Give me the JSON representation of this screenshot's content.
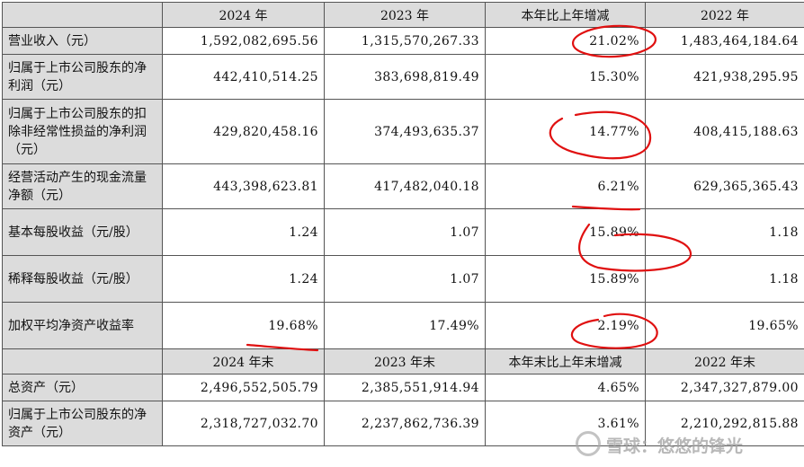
{
  "header": [
    "2024 年",
    "2023 年",
    "本年比上年增减",
    "2022 年"
  ],
  "rows": [
    {
      "label": "营业收入（元）",
      "v2024": "1,592,082,695.56",
      "v2023": "1,315,570,267.33",
      "change": "21.02%",
      "v2022": "1,483,464,184.64"
    },
    {
      "label": "归属于上市公司股东的净利润（元）",
      "v2024": "442,410,514.25",
      "v2023": "383,698,819.49",
      "change": "15.30%",
      "v2022": "421,938,295.95"
    },
    {
      "label": "归属于上市公司股东的扣除非经常性损益的净利润（元）",
      "v2024": "429,820,458.16",
      "v2023": "374,493,635.37",
      "change": "14.77%",
      "v2022": "408,415,188.63"
    },
    {
      "label": "经营活动产生的现金流量净额（元）",
      "v2024": "443,398,623.81",
      "v2023": "417,482,040.18",
      "change": "6.21%",
      "v2022": "629,365,365.43"
    },
    {
      "label": "基本每股收益（元/股）",
      "v2024": "1.24",
      "v2023": "1.07",
      "change": "15.89%",
      "v2022": "1.18"
    },
    {
      "label": "稀释每股收益（元/股）",
      "v2024": "1.24",
      "v2023": "1.07",
      "change": "15.89%",
      "v2022": "1.18"
    },
    {
      "label": "加权平均净资产收益率",
      "v2024": "19.68%",
      "v2023": "17.49%",
      "change": "2.19%",
      "v2022": "19.65%"
    }
  ],
  "header2": [
    "2024 年末",
    "2023 年末",
    "本年末比上年末增减",
    "2022 年末"
  ],
  "rows2": [
    {
      "label": "总资产（元）",
      "v2024": "2,496,552,505.79",
      "v2023": "2,385,551,914.94",
      "change": "4.65%",
      "v2022": "2,347,327,879.00"
    },
    {
      "label": "归属于上市公司股东的净资产（元）",
      "v2024": "2,318,727,032.70",
      "v2023": "2,237,862,736.39",
      "change": "3.61%",
      "v2022": "2,210,292,815.88"
    }
  ],
  "watermark": "雪球：悠悠的锋光"
}
